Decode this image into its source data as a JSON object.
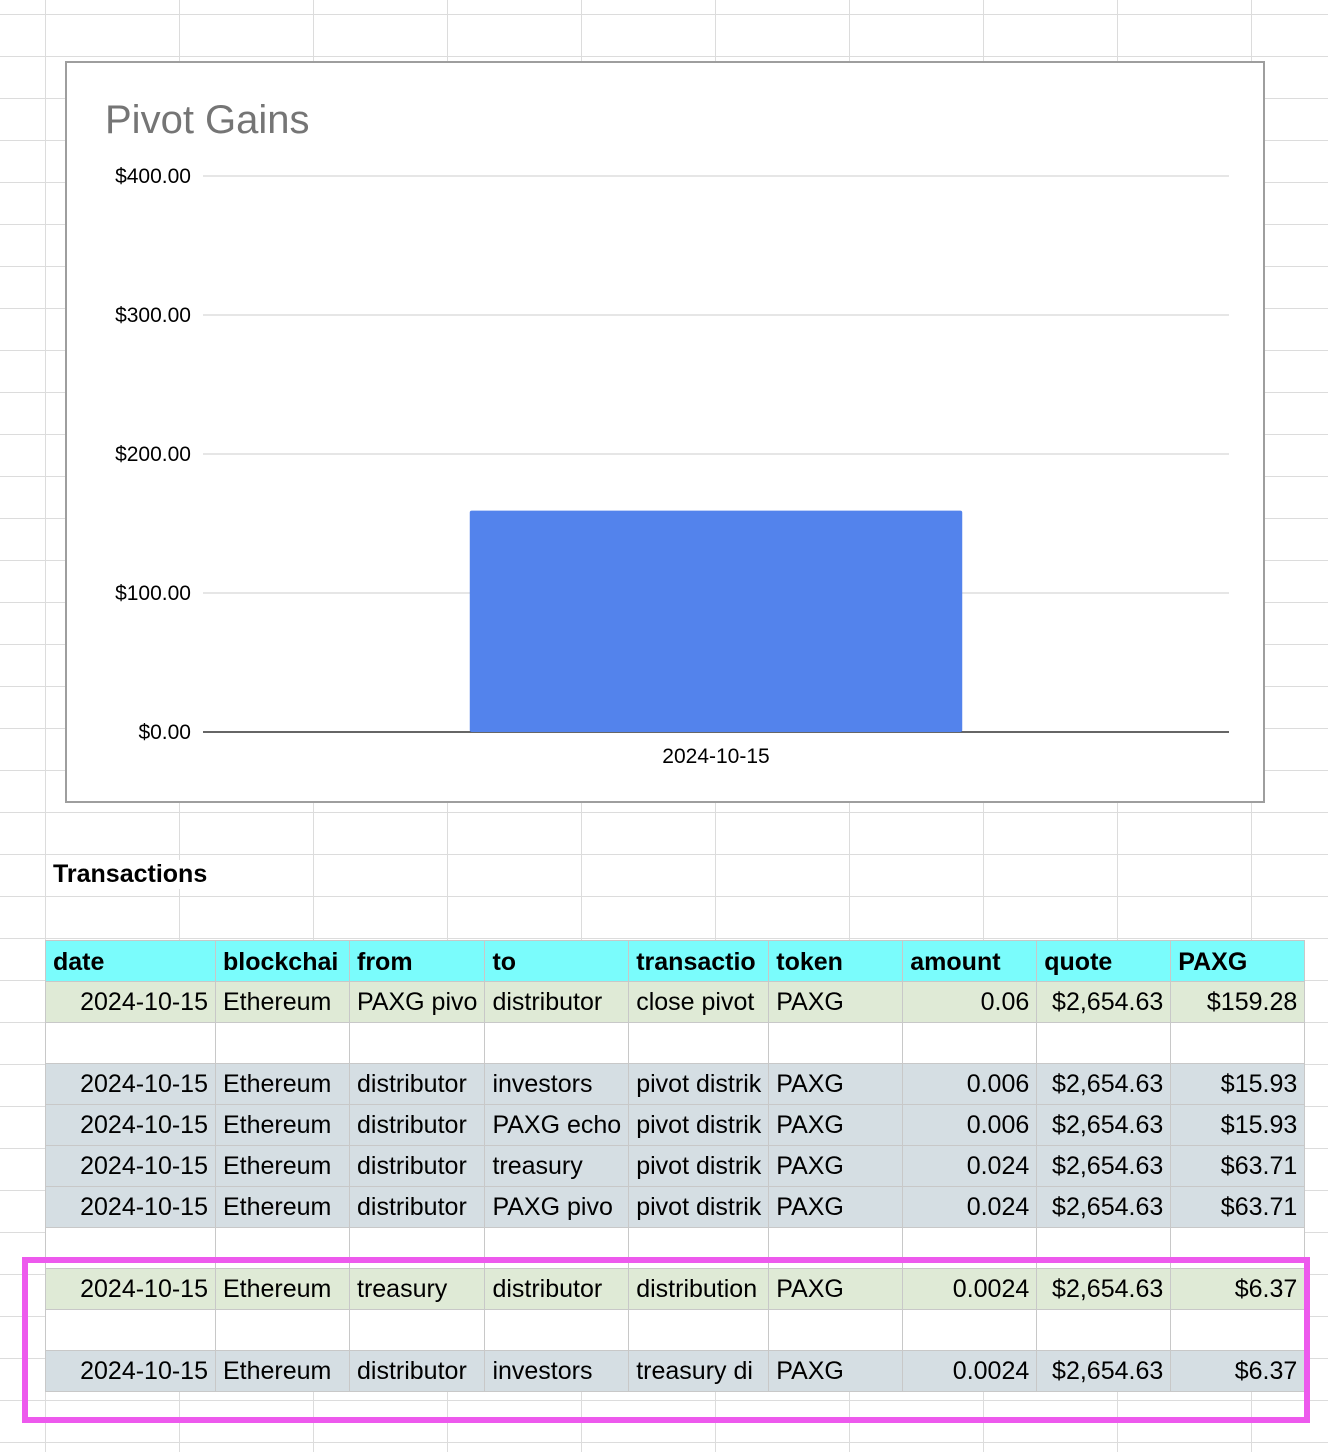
{
  "chart_data": {
    "type": "bar",
    "title": "Pivot Gains",
    "categories": [
      "2024-10-15"
    ],
    "values": [
      159.28
    ],
    "ylim": [
      0,
      400
    ],
    "yticks": [
      "$0.00",
      "$100.00",
      "$200.00",
      "$300.00",
      "$400.00"
    ],
    "ytick_values": [
      0,
      100,
      200,
      300,
      400
    ],
    "xlabel": "",
    "ylabel": "",
    "grid": true,
    "bar_color": "#5383ec"
  },
  "section": {
    "title": "Transactions"
  },
  "table": {
    "headers": [
      "date",
      "blockchain",
      "from",
      "to",
      "transaction",
      "token",
      "amount",
      "quote",
      "PAXG"
    ],
    "header_display": [
      "date",
      "blockchai",
      "from",
      "to",
      "transactio",
      "token",
      "amount",
      "quote",
      "PAXG"
    ],
    "rows": [
      {
        "style": "green",
        "cells": [
          "2024-10-15",
          "Ethereum",
          "PAXG pivo",
          "distributor",
          "close pivot",
          "PAXG",
          "0.06",
          "$2,654.63",
          "$159.28"
        ]
      },
      {
        "style": "blank",
        "cells": [
          "",
          "",
          "",
          "",
          "",
          "",
          "",
          "",
          ""
        ]
      },
      {
        "style": "blue",
        "cells": [
          "2024-10-15",
          "Ethereum",
          "distributor",
          "investors",
          "pivot distrik",
          "PAXG",
          "0.006",
          "$2,654.63",
          "$15.93"
        ]
      },
      {
        "style": "blue",
        "cells": [
          "2024-10-15",
          "Ethereum",
          "distributor",
          "PAXG echo",
          "pivot distrik",
          "PAXG",
          "0.006",
          "$2,654.63",
          "$15.93"
        ]
      },
      {
        "style": "blue",
        "cells": [
          "2024-10-15",
          "Ethereum",
          "distributor",
          "treasury",
          "pivot distrik",
          "PAXG",
          "0.024",
          "$2,654.63",
          "$63.71"
        ]
      },
      {
        "style": "blue",
        "cells": [
          "2024-10-15",
          "Ethereum",
          "distributor",
          "PAXG pivo",
          "pivot distrik",
          "PAXG",
          "0.024",
          "$2,654.63",
          "$63.71"
        ]
      },
      {
        "style": "blank",
        "cells": [
          "",
          "",
          "",
          "",
          "",
          "",
          "",
          "",
          ""
        ]
      },
      {
        "style": "green",
        "cells": [
          "2024-10-15",
          "Ethereum",
          "treasury",
          "distributor",
          "distribution",
          "PAXG",
          "0.0024",
          "$2,654.63",
          "$6.37"
        ]
      },
      {
        "style": "blank",
        "cells": [
          "",
          "",
          "",
          "",
          "",
          "",
          "",
          "",
          ""
        ]
      },
      {
        "style": "blue",
        "cells": [
          "2024-10-15",
          "Ethereum",
          "distributor",
          "investors",
          "treasury di",
          "PAXG",
          "0.0024",
          "$2,654.63",
          "$6.37"
        ]
      }
    ]
  },
  "colors": {
    "header_bg": "#7afcfc",
    "green_row": "#dfead6",
    "blue_row": "#d5dee3",
    "highlight": "#ed59ed"
  }
}
